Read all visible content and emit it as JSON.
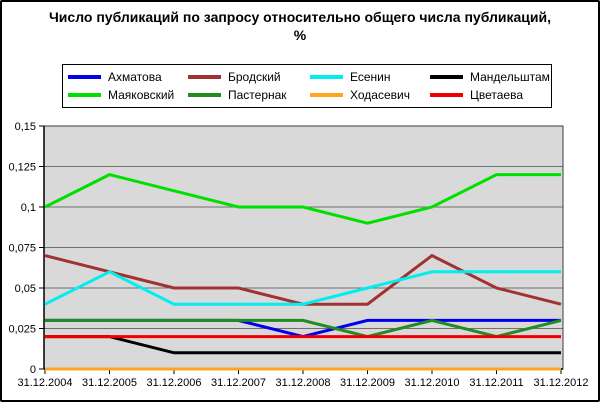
{
  "window": {
    "background": "#ffffff",
    "border_color": "#000000"
  },
  "title_lines": [
    "Число публикаций по запросу относительно общего числа публикаций,",
    "%"
  ],
  "chart_data": {
    "type": "line",
    "title": "Число публикаций по запросу относительно общего числа публикаций, %",
    "xlabel": "",
    "ylabel": "",
    "x_labels": [
      "31.12.2004",
      "31.12.2005",
      "31.12.2006",
      "31.12.2007",
      "31.12.2008",
      "31.12.2009",
      "31.12.2010",
      "31.12.2011",
      "31.12.2012"
    ],
    "y_tick_values": [
      0,
      0.025,
      0.05,
      0.075,
      0.1,
      0.125,
      0.15
    ],
    "y_tick_labels": [
      "0",
      "0,025",
      "0,05",
      "0,075",
      "0,1",
      "0,125",
      "0,15"
    ],
    "ylim": [
      0,
      0.15
    ],
    "grid": true,
    "legend_position": "top",
    "plot_background": "#d9d9d9",
    "gridline_color": "#6f6f6f",
    "axis_color": "#000000",
    "line_width": 3,
    "series": [
      {
        "id": "akhmatova",
        "name": "Ахматова",
        "color": "#0000ee",
        "values": [
          0.03,
          0.03,
          0.03,
          0.03,
          0.02,
          0.03,
          0.03,
          0.03,
          0.03
        ]
      },
      {
        "id": "brodsky",
        "name": "Бродский",
        "color": "#a03232",
        "values": [
          0.07,
          0.06,
          0.05,
          0.05,
          0.04,
          0.04,
          0.07,
          0.05,
          0.04
        ]
      },
      {
        "id": "yesenin",
        "name": "Есенин",
        "color": "#00eeee",
        "values": [
          0.04,
          0.06,
          0.04,
          0.04,
          0.04,
          0.05,
          0.06,
          0.06,
          0.06
        ]
      },
      {
        "id": "mandelstam",
        "name": "Мандельштам",
        "color": "#000000",
        "values": [
          0.02,
          0.02,
          0.01,
          0.01,
          0.01,
          0.01,
          0.01,
          0.01,
          0.01
        ]
      },
      {
        "id": "mayakovsky",
        "name": "Маяковский",
        "color": "#00e000",
        "values": [
          0.1,
          0.12,
          0.11,
          0.1,
          0.1,
          0.09,
          0.1,
          0.12,
          0.12
        ]
      },
      {
        "id": "pasternak",
        "name": "Пастернак",
        "color": "#228b22",
        "values": [
          0.03,
          0.03,
          0.03,
          0.03,
          0.03,
          0.02,
          0.03,
          0.02,
          0.03
        ]
      },
      {
        "id": "khodasevich",
        "name": "Ходасевич",
        "color": "#ffa41e",
        "values": [
          0,
          0,
          0,
          0,
          0,
          0,
          0,
          0,
          0
        ]
      },
      {
        "id": "tsvetaeva",
        "name": "Цветаева",
        "color": "#ee0000",
        "values": [
          0.02,
          0.02,
          0.02,
          0.02,
          0.02,
          0.02,
          0.02,
          0.02,
          0.02
        ]
      }
    ]
  }
}
